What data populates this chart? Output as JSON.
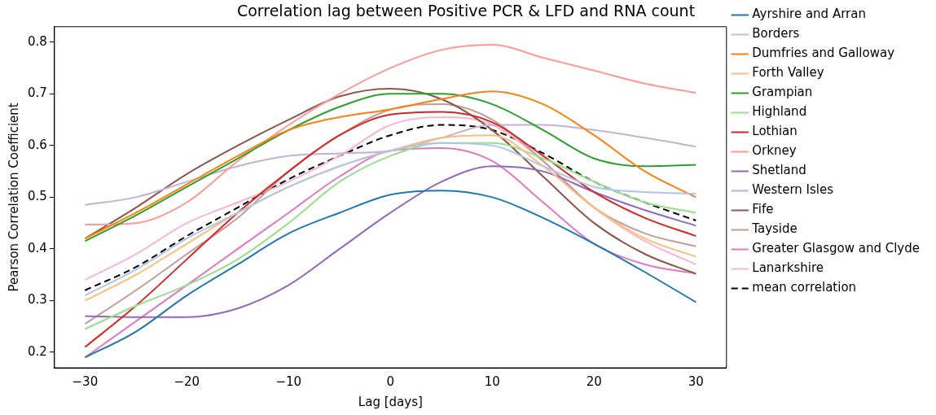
{
  "chart_data": {
    "type": "line",
    "title": "Correlation lag between Positive PCR & LFD and RNA count",
    "xlabel": "Lag [days]",
    "ylabel": "Pearson Correlation Coefficient",
    "x": [
      -30,
      -25,
      -20,
      -15,
      -10,
      -5,
      0,
      5,
      10,
      15,
      20,
      25,
      30
    ],
    "xlim": [
      -33,
      33
    ],
    "xticks": [
      {
        "value": -30,
        "label": "−30"
      },
      {
        "value": -20,
        "label": "−20"
      },
      {
        "value": -10,
        "label": "−10"
      },
      0,
      10,
      20,
      30
    ],
    "ylim": [
      0.17,
      0.83
    ],
    "yticks": [
      0.2,
      0.3,
      0.4,
      0.5,
      0.6,
      0.7,
      0.8
    ],
    "grid": false,
    "legend": "right",
    "marker": "none",
    "line_style": "solid",
    "series": [
      {
        "name": "Ayrshire and Arran",
        "color": "#1f77b4",
        "values": [
          0.19,
          0.24,
          0.31,
          0.37,
          0.43,
          0.47,
          0.505,
          0.513,
          0.5,
          0.46,
          0.41,
          0.355,
          0.297
        ]
      },
      {
        "name": "Borders",
        "color": "#aec7e8",
        "values": [
          0.31,
          0.36,
          0.42,
          0.47,
          0.52,
          0.56,
          0.59,
          0.605,
          0.6,
          0.56,
          0.52,
          0.51,
          0.507
        ]
      },
      {
        "name": "Dumfries and Galloway",
        "color": "#ff7f0e",
        "values": [
          0.42,
          0.47,
          0.525,
          0.58,
          0.63,
          0.655,
          0.67,
          0.69,
          0.705,
          0.68,
          0.62,
          0.55,
          0.5
        ]
      },
      {
        "name": "Forth Valley",
        "color": "#ffbb78",
        "values": [
          0.3,
          0.35,
          0.41,
          0.47,
          0.52,
          0.56,
          0.59,
          0.615,
          0.62,
          0.56,
          0.48,
          0.42,
          0.385
        ]
      },
      {
        "name": "Grampian",
        "color": "#2ca02c",
        "values": [
          0.415,
          0.465,
          0.52,
          0.575,
          0.63,
          0.675,
          0.7,
          0.7,
          0.68,
          0.63,
          0.575,
          0.56,
          0.563
        ]
      },
      {
        "name": "Highland",
        "color": "#98df8a",
        "values": [
          0.245,
          0.29,
          0.33,
          0.38,
          0.45,
          0.53,
          0.58,
          0.605,
          0.605,
          0.575,
          0.53,
          0.49,
          0.47
        ]
      },
      {
        "name": "Lothian",
        "color": "#d62728",
        "values": [
          0.21,
          0.29,
          0.38,
          0.47,
          0.55,
          0.62,
          0.66,
          0.665,
          0.645,
          0.58,
          0.51,
          0.46,
          0.425
        ]
      },
      {
        "name": "Orkney",
        "color": "#ff9896",
        "values": [
          0.447,
          0.45,
          0.49,
          0.57,
          0.64,
          0.7,
          0.75,
          0.785,
          0.795,
          0.77,
          0.745,
          0.72,
          0.702
        ]
      },
      {
        "name": "Shetland",
        "color": "#9467bd",
        "values": [
          0.27,
          0.268,
          0.268,
          0.285,
          0.33,
          0.4,
          0.47,
          0.53,
          0.56,
          0.55,
          0.51,
          0.475,
          0.445
        ]
      },
      {
        "name": "Western Isles",
        "color": "#c5b0d5",
        "values": [
          0.485,
          0.5,
          0.53,
          0.56,
          0.58,
          0.585,
          0.59,
          0.615,
          0.64,
          0.64,
          0.63,
          0.615,
          0.598
        ]
      },
      {
        "name": "Fife",
        "color": "#8c564b",
        "values": [
          0.42,
          0.48,
          0.545,
          0.6,
          0.65,
          0.695,
          0.71,
          0.69,
          0.63,
          0.54,
          0.45,
          0.39,
          0.352
        ]
      },
      {
        "name": "Tayside",
        "color": "#c49c94",
        "values": [
          0.255,
          0.32,
          0.39,
          0.46,
          0.55,
          0.62,
          0.67,
          0.68,
          0.65,
          0.57,
          0.48,
          0.43,
          0.405
        ]
      },
      {
        "name": "Greater Glasgow and Clyde",
        "color": "#e377c2",
        "values": [
          0.19,
          0.26,
          0.33,
          0.4,
          0.47,
          0.54,
          0.59,
          0.595,
          0.57,
          0.49,
          0.41,
          0.37,
          0.352
        ]
      },
      {
        "name": "Lanarkshire",
        "color": "#f7b6d2",
        "values": [
          0.34,
          0.39,
          0.45,
          0.49,
          0.53,
          0.58,
          0.64,
          0.655,
          0.64,
          0.57,
          0.48,
          0.415,
          0.37
        ]
      },
      {
        "name": "mean correlation",
        "color": "#000000",
        "line_style": "dashed",
        "values": [
          0.32,
          0.365,
          0.425,
          0.48,
          0.535,
          0.58,
          0.62,
          0.64,
          0.63,
          0.585,
          0.53,
          0.49,
          0.455
        ]
      }
    ]
  }
}
